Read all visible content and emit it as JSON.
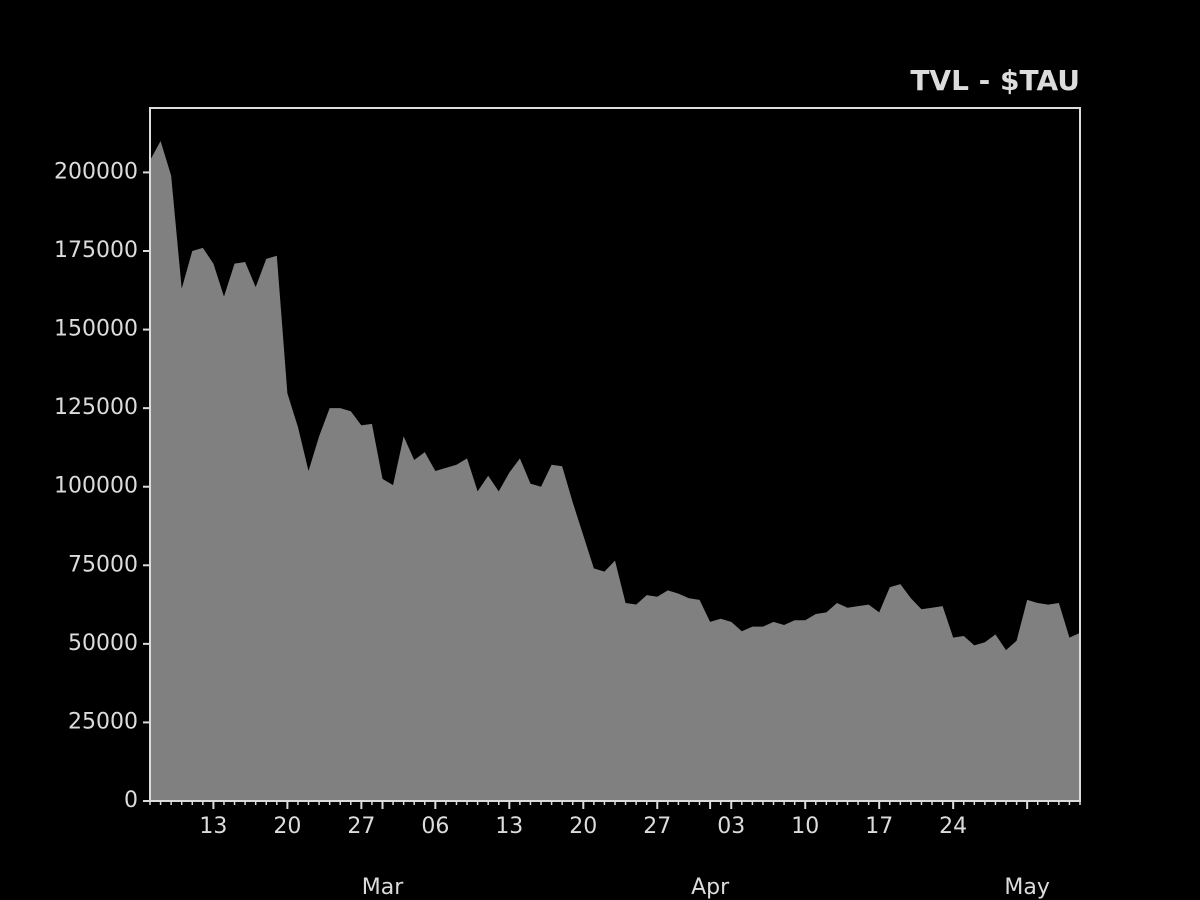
{
  "chart_data": {
    "type": "area",
    "title": "TVL - $TAU",
    "color": "#808080",
    "x": [
      "02-07",
      "02-08",
      "02-09",
      "02-10",
      "02-11",
      "02-12",
      "02-13",
      "02-14",
      "02-15",
      "02-16",
      "02-17",
      "02-18",
      "02-19",
      "02-20",
      "02-21",
      "02-22",
      "02-23",
      "02-24",
      "02-25",
      "02-26",
      "02-27",
      "02-28",
      "03-01",
      "03-02",
      "03-03",
      "03-04",
      "03-05",
      "03-06",
      "03-07",
      "03-08",
      "03-09",
      "03-10",
      "03-11",
      "03-12",
      "03-13",
      "03-14",
      "03-15",
      "03-16",
      "03-17",
      "03-18",
      "03-19",
      "03-20",
      "03-21",
      "03-22",
      "03-23",
      "03-24",
      "03-25",
      "03-26",
      "03-27",
      "03-28",
      "03-29",
      "03-30",
      "03-31",
      "04-01",
      "04-02",
      "04-03",
      "04-04",
      "04-05",
      "04-06",
      "04-07",
      "04-08",
      "04-09",
      "04-10",
      "04-11",
      "04-12",
      "04-13",
      "04-14",
      "04-15",
      "04-16",
      "04-17",
      "04-18",
      "04-19",
      "04-20",
      "04-21",
      "04-22",
      "04-23",
      "04-24",
      "04-25",
      "04-26",
      "04-27",
      "04-28",
      "04-29",
      "04-30",
      "05-01",
      "05-02",
      "05-03",
      "05-04",
      "05-05",
      "05-06"
    ],
    "values": [
      203800,
      210000,
      199000,
      163000,
      175000,
      176000,
      171000,
      160500,
      171000,
      171500,
      163500,
      172500,
      173500,
      129700,
      119000,
      105000,
      116000,
      125000,
      125000,
      124000,
      119500,
      120000,
      102500,
      100500,
      116000,
      108500,
      111000,
      105000,
      106000,
      107000,
      109000,
      98500,
      103500,
      98500,
      104500,
      109000,
      101000,
      100000,
      107000,
      106500,
      95000,
      84500,
      74000,
      73000,
      76500,
      63000,
      62500,
      65500,
      65000,
      67000,
      66000,
      64500,
      64000,
      57000,
      58000,
      57000,
      54000,
      55500,
      55500,
      57000,
      56000,
      57500,
      57500,
      59500,
      60000,
      63000,
      61500,
      62000,
      62500,
      60000,
      68000,
      69000,
      64500,
      61000,
      61500,
      62000,
      52000,
      52500,
      49500,
      50500,
      53000,
      48000,
      51000,
      64000,
      63000,
      62500,
      63000,
      52000,
      53500
    ],
    "xlim": [
      "02-07",
      "05-06"
    ],
    "xticks": [
      {
        "value": "02-13",
        "label": "13"
      },
      {
        "value": "02-20",
        "label": "20"
      },
      {
        "value": "02-27",
        "label": "27"
      },
      {
        "value": "03-06",
        "label": "06"
      },
      {
        "value": "03-13",
        "label": "13"
      },
      {
        "value": "03-20",
        "label": "20"
      },
      {
        "value": "03-27",
        "label": "27"
      },
      {
        "value": "04-03",
        "label": "03"
      },
      {
        "value": "04-10",
        "label": "10"
      },
      {
        "value": "04-17",
        "label": "17"
      },
      {
        "value": "04-24",
        "label": "24"
      }
    ],
    "month_ticks": [
      {
        "value": "03-01",
        "label": "Mar"
      },
      {
        "value": "04-01",
        "label": "Apr"
      },
      {
        "value": "05-01",
        "label": "May"
      }
    ],
    "ylim": [
      0,
      220500
    ],
    "yticks": [
      0,
      25000,
      50000,
      75000,
      100000,
      125000,
      150000,
      175000,
      200000
    ]
  }
}
